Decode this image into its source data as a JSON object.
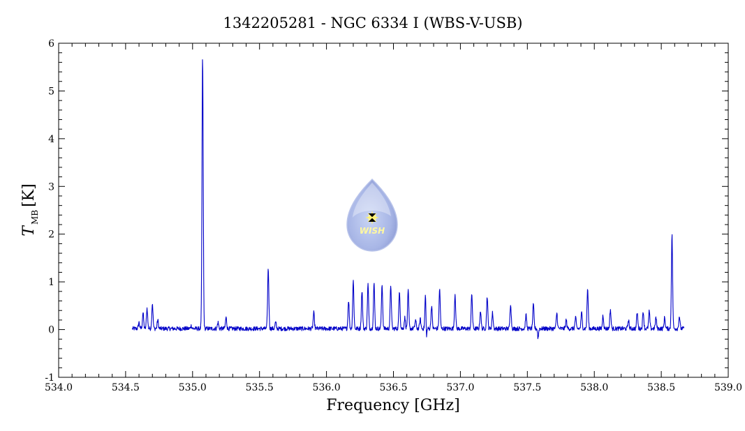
{
  "chart_data": {
    "type": "line",
    "title": "1342205281 - NGC 6334 I (WBS-V-USB)",
    "xlabel": "Frequency [GHz]",
    "ylabel_main": "T",
    "ylabel_sub": "MB",
    "ylabel_unit": "[K]",
    "xlim": [
      534.0,
      539.0
    ],
    "ylim": [
      -1,
      6
    ],
    "x_ticks": [
      534.0,
      534.5,
      535.0,
      535.5,
      536.0,
      536.5,
      537.0,
      537.5,
      538.0,
      538.5,
      539.0
    ],
    "x_tick_labels": [
      "534.0",
      "534.5",
      "535.0",
      "535.5",
      "536.0",
      "536.5",
      "537.0",
      "537.5",
      "538.0",
      "538.5",
      "539.0"
    ],
    "y_ticks": [
      -1,
      0,
      1,
      2,
      3,
      4,
      5,
      6
    ],
    "y_tick_labels": [
      "-1",
      "0",
      "1",
      "2",
      "3",
      "4",
      "5",
      "6"
    ],
    "grid": false,
    "legend": "none",
    "series_color": "#0000c8",
    "x_range": [
      534.55,
      538.67
    ],
    "baseline": 0.02,
    "lines": [
      {
        "x": 534.6,
        "y": 0.15
      },
      {
        "x": 534.63,
        "y": 0.35
      },
      {
        "x": 534.66,
        "y": 0.45
      },
      {
        "x": 534.7,
        "y": 0.55
      },
      {
        "x": 534.74,
        "y": 0.2
      },
      {
        "x": 534.99,
        "y": 0.08
      },
      {
        "x": 535.075,
        "y": 5.72
      },
      {
        "x": 535.19,
        "y": 0.15
      },
      {
        "x": 535.25,
        "y": 0.25
      },
      {
        "x": 535.565,
        "y": 1.28
      },
      {
        "x": 535.62,
        "y": 0.15
      },
      {
        "x": 535.905,
        "y": 0.35
      },
      {
        "x": 536.165,
        "y": 0.62
      },
      {
        "x": 536.2,
        "y": 1.02
      },
      {
        "x": 536.265,
        "y": 0.82
      },
      {
        "x": 536.31,
        "y": 0.95
      },
      {
        "x": 536.355,
        "y": 0.97
      },
      {
        "x": 536.415,
        "y": 0.95
      },
      {
        "x": 536.48,
        "y": 0.93
      },
      {
        "x": 536.545,
        "y": 0.82
      },
      {
        "x": 536.585,
        "y": 0.25
      },
      {
        "x": 536.61,
        "y": 0.8
      },
      {
        "x": 536.665,
        "y": 0.2
      },
      {
        "x": 536.7,
        "y": 0.22
      },
      {
        "x": 536.74,
        "y": 0.85
      },
      {
        "x": 536.785,
        "y": 0.5
      },
      {
        "x": 536.845,
        "y": 0.85
      },
      {
        "x": 536.96,
        "y": 0.75
      },
      {
        "x": 537.085,
        "y": 0.75
      },
      {
        "x": 537.15,
        "y": 0.4
      },
      {
        "x": 537.2,
        "y": 0.7
      },
      {
        "x": 537.24,
        "y": 0.35
      },
      {
        "x": 537.375,
        "y": 0.55
      },
      {
        "x": 537.49,
        "y": 0.3
      },
      {
        "x": 537.545,
        "y": 0.52
      },
      {
        "x": 537.72,
        "y": 0.35
      },
      {
        "x": 537.79,
        "y": 0.2
      },
      {
        "x": 537.86,
        "y": 0.25
      },
      {
        "x": 537.905,
        "y": 0.35
      },
      {
        "x": 537.95,
        "y": 0.85
      },
      {
        "x": 538.065,
        "y": 0.3
      },
      {
        "x": 538.12,
        "y": 0.42
      },
      {
        "x": 538.255,
        "y": 0.2
      },
      {
        "x": 538.32,
        "y": 0.35
      },
      {
        "x": 538.365,
        "y": 0.38
      },
      {
        "x": 538.41,
        "y": 0.38
      },
      {
        "x": 538.46,
        "y": 0.25
      },
      {
        "x": 538.525,
        "y": 0.25
      },
      {
        "x": 538.58,
        "y": 1.98
      },
      {
        "x": 538.635,
        "y": 0.28
      }
    ],
    "dips": [
      {
        "x": 536.745,
        "y": -0.42
      },
      {
        "x": 537.58,
        "y": -0.18
      }
    ]
  }
}
